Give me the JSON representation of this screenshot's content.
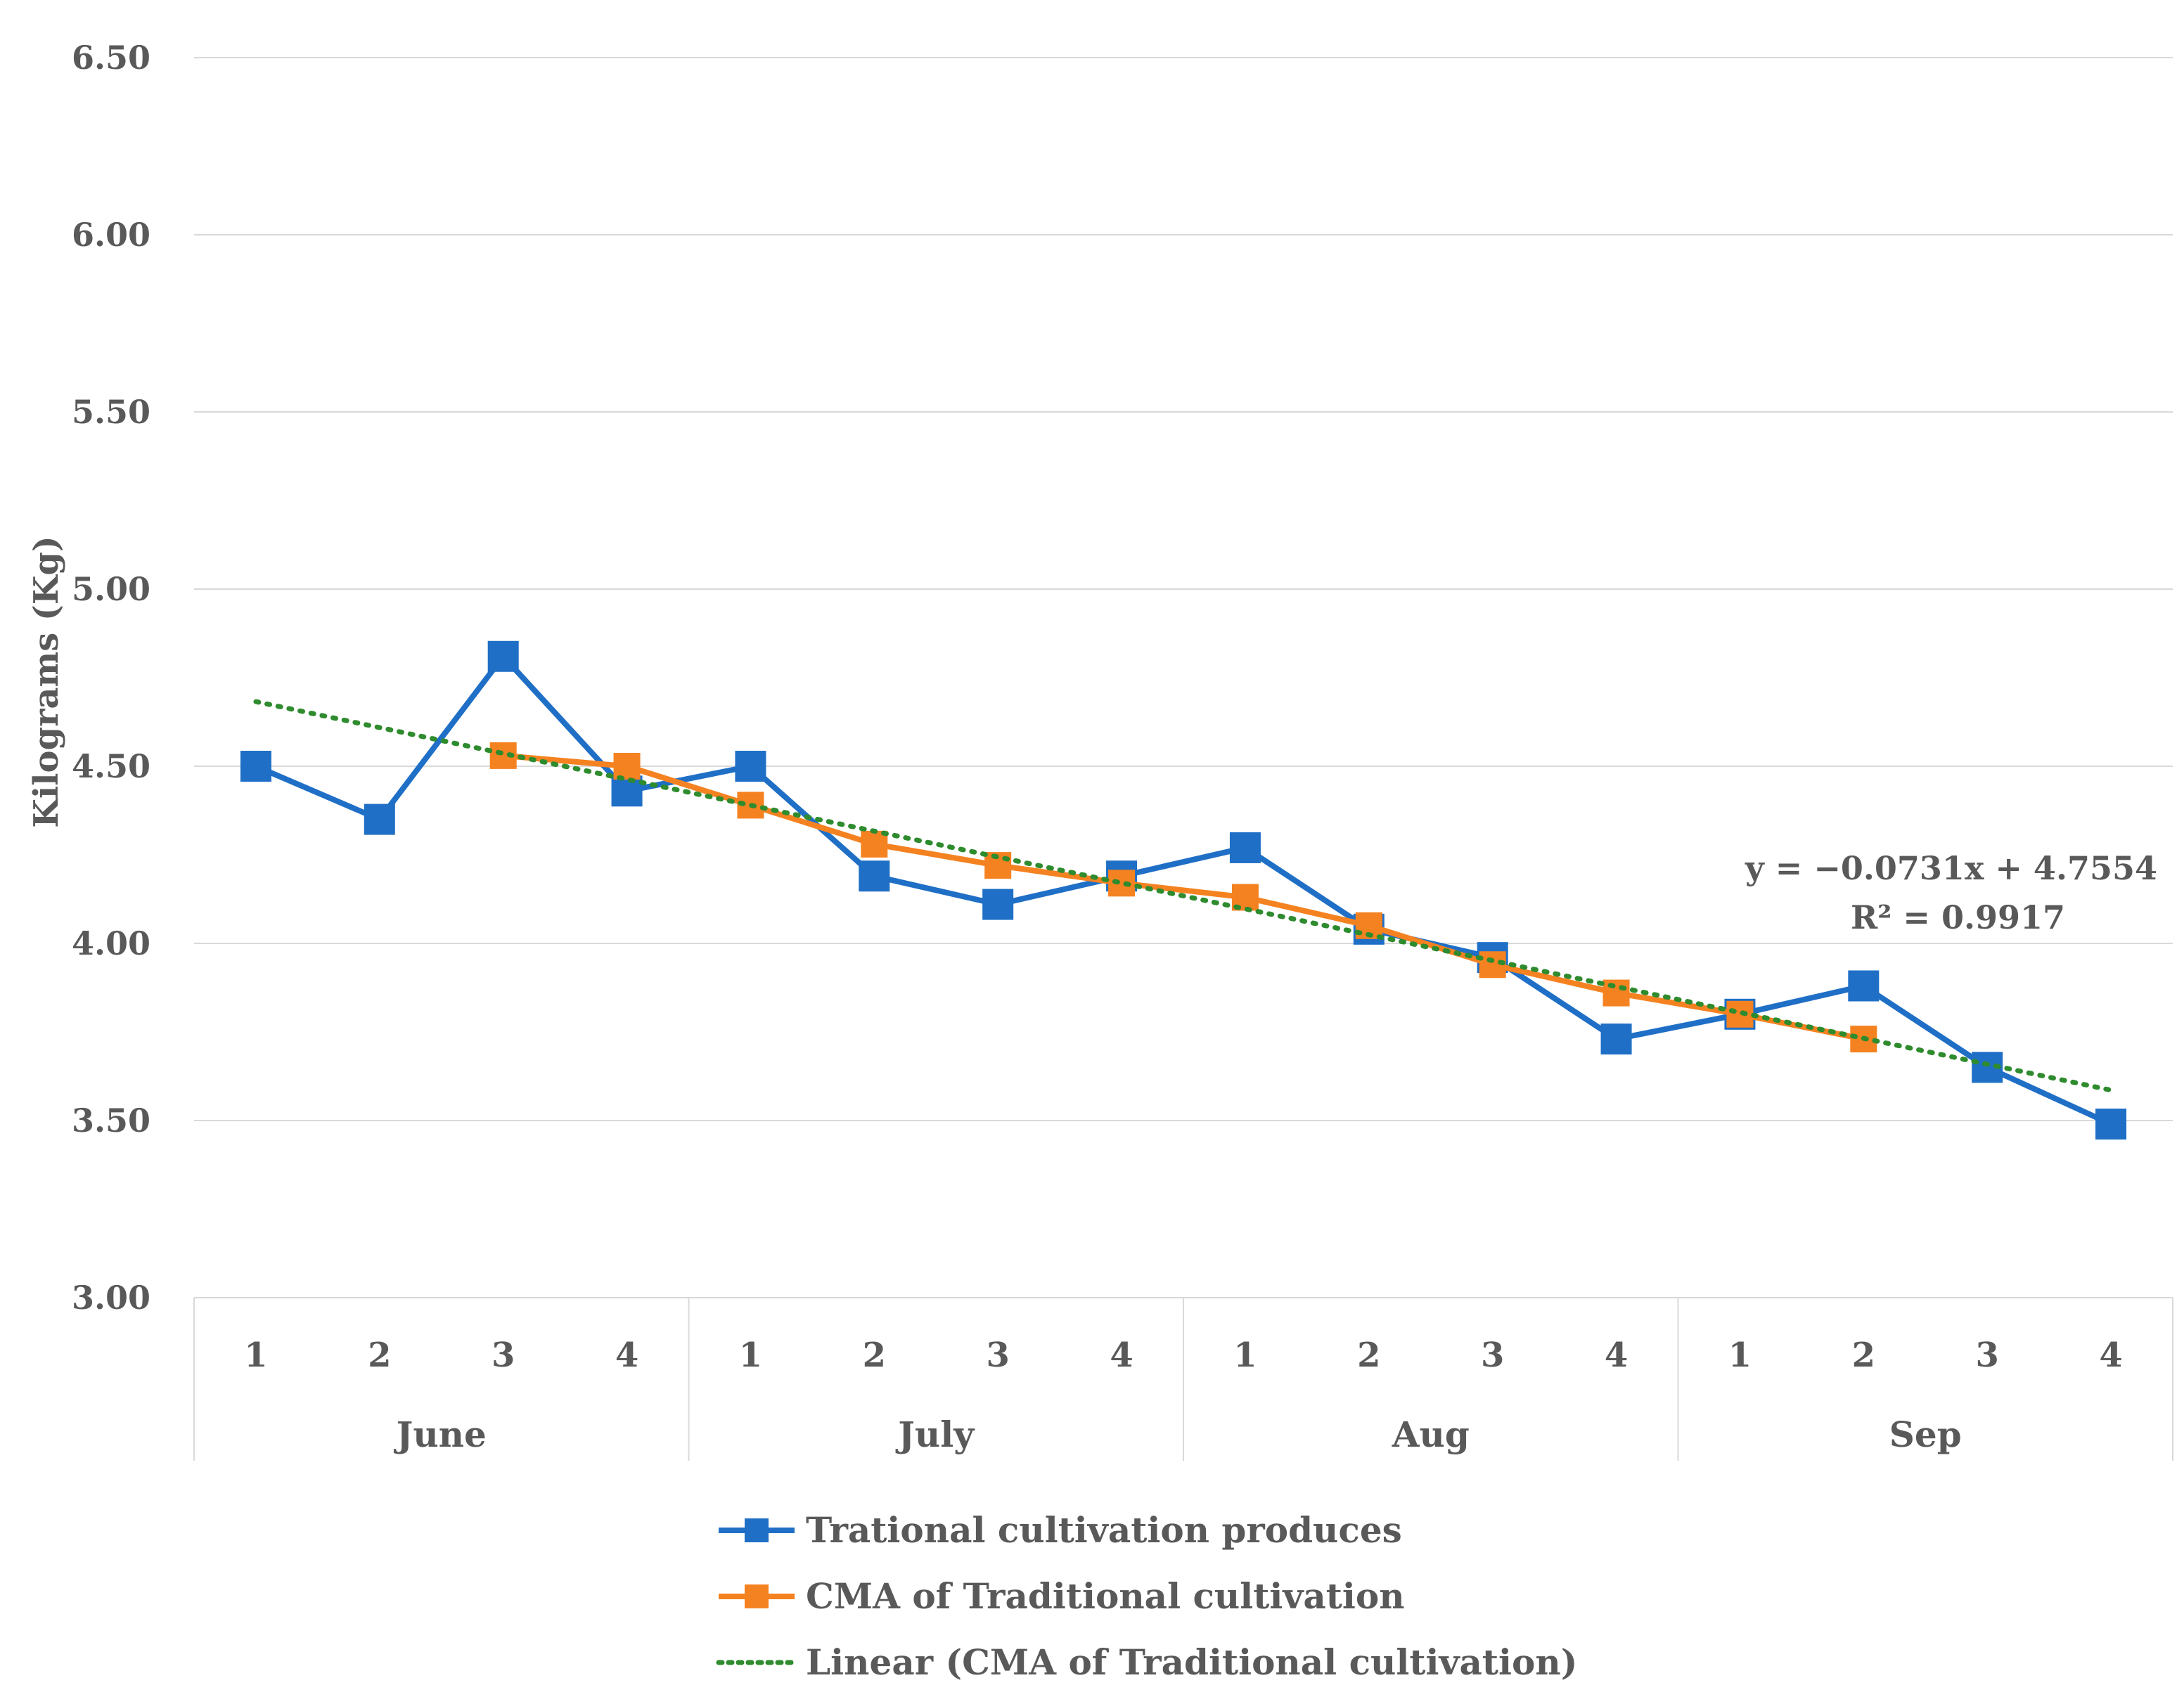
{
  "chart_data": {
    "type": "line",
    "title": "",
    "xlabel": "",
    "ylabel": "Kilograms (Kg)",
    "ylim": [
      3.0,
      6.5
    ],
    "yticks": [
      "3.00",
      "3.50",
      "4.00",
      "4.50",
      "5.00",
      "5.50",
      "6.00",
      "6.50"
    ],
    "grid": true,
    "categories": [
      "1",
      "2",
      "3",
      "4",
      "1",
      "2",
      "3",
      "4",
      "1",
      "2",
      "3",
      "4",
      "1",
      "2",
      "3",
      "4"
    ],
    "groups": [
      {
        "label": "June",
        "count": 4
      },
      {
        "label": "July",
        "count": 4
      },
      {
        "label": "Aug",
        "count": 4
      },
      {
        "label": "Sep",
        "count": 4
      }
    ],
    "series": [
      {
        "name": "Trational cultivation produces",
        "color": "#1f6fc6",
        "marker": "square",
        "values": [
          4.5,
          4.35,
          4.81,
          4.43,
          4.5,
          4.19,
          4.11,
          4.19,
          4.27,
          4.04,
          3.96,
          3.73,
          3.8,
          3.88,
          3.65,
          3.49
        ]
      },
      {
        "name": "CMA of Traditional cultivation",
        "color": "#f58220",
        "marker": "square",
        "values": [
          null,
          null,
          4.53,
          4.5,
          4.39,
          4.28,
          4.22,
          4.17,
          4.13,
          4.05,
          3.94,
          3.86,
          3.8,
          3.73,
          null,
          null
        ]
      }
    ],
    "trendline": {
      "name": "Linear (CMA of Traditional cultivation)",
      "color": "#2e8b2e",
      "style": "dotted",
      "slope": -0.0731,
      "intercept": 4.7554,
      "x_start": 1,
      "x_end": 16,
      "equation": "y = −0.0731x + 4.7554",
      "r_squared": "R² = 0.9917"
    },
    "legend_position": "bottom"
  }
}
